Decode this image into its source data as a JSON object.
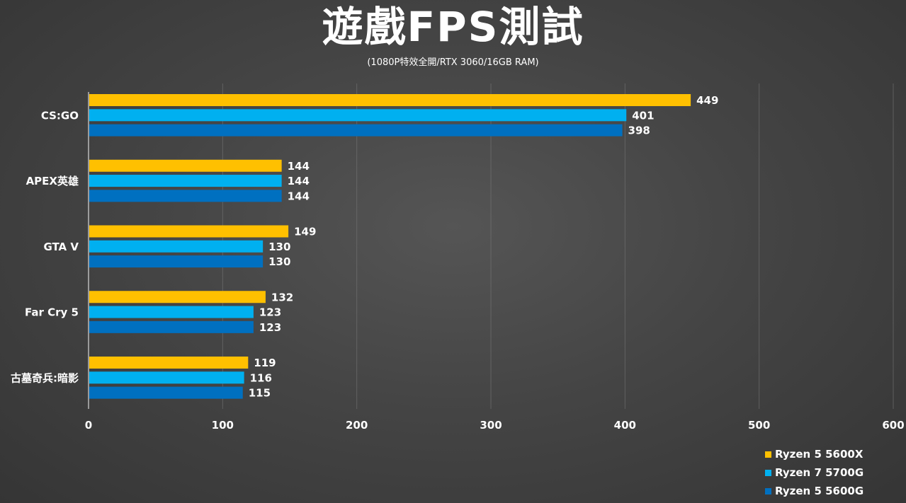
{
  "title": "遊戲FPS測試",
  "subtitle": "(1080P特效全開/RTX 3060/16GB RAM)",
  "chart_data": {
    "type": "bar",
    "orientation": "horizontal",
    "categories": [
      "CS:GO",
      "APEX英雄",
      "GTA V",
      "Far Cry 5",
      "古墓奇兵:暗影"
    ],
    "series": [
      {
        "name": "Ryzen 5 5600X",
        "color": "#FFC000",
        "values": [
          449,
          144,
          149,
          132,
          119
        ]
      },
      {
        "name": "Ryzen 7 5700G",
        "color": "#00B0F0",
        "values": [
          401,
          144,
          130,
          123,
          116
        ]
      },
      {
        "name": "Ryzen 5 5600G",
        "color": "#0070C0",
        "values": [
          398,
          144,
          130,
          123,
          115
        ]
      }
    ],
    "xlim": [
      0,
      600
    ],
    "xticks": [
      0,
      100,
      200,
      300,
      400,
      500,
      600
    ],
    "grid": true,
    "data_labels": true,
    "legend_position": "bottom-right"
  }
}
